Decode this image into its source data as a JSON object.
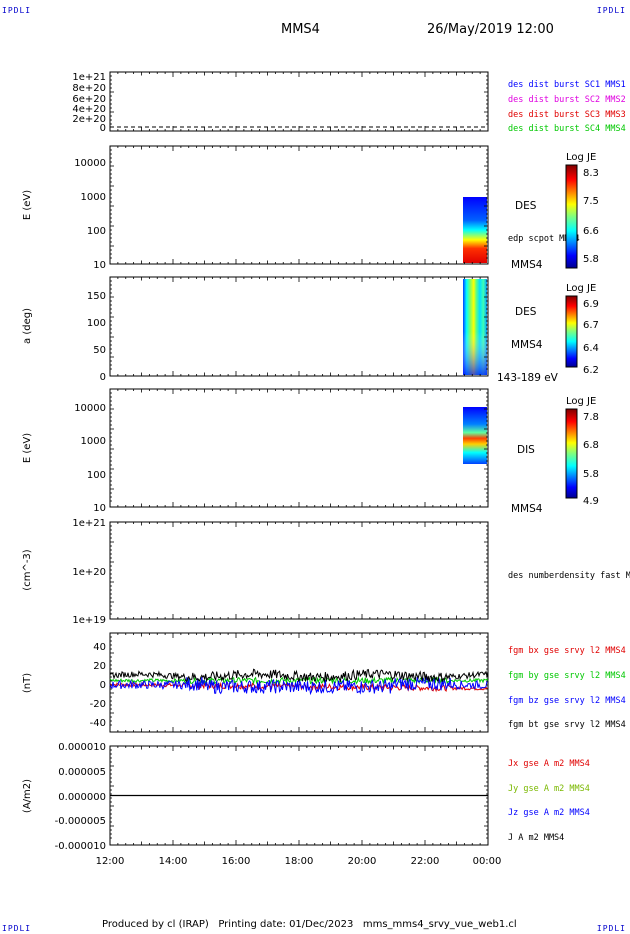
{
  "corner_labels": {
    "top_left": "IPDLI",
    "top_right": "IPDLI",
    "bottom_left": "IPDLI",
    "bottom_right": "IPDLI"
  },
  "header": {
    "spacecraft": "MMS4",
    "date": "26/May/2019 12:00"
  },
  "footer": {
    "text": "Produced by cl (IRAP)   Printing date: 01/Dec/2023   mms_mms4_srvy_vue_web1.cl"
  },
  "colors": {
    "red": "#e00000",
    "magenta": "#e000e0",
    "green": "#00c800",
    "blue": "#0000ff",
    "yellowgreen": "#7ab800",
    "black": "#000000"
  },
  "chart_data": [
    {
      "id": "panel1",
      "type": "line",
      "yticks": [
        "1e+21",
        "8e+20",
        "6e+20",
        "4e+20",
        "2e+20",
        "0"
      ],
      "ylim": [
        0,
        1.05e+21
      ],
      "series": [
        {
          "name": "des dist burst SC1 MMS1",
          "color": "#0000ff"
        },
        {
          "name": "des dist burst SC2 MMS2",
          "color": "#e000e0"
        },
        {
          "name": "des dist burst SC3 MMS3",
          "color": "#e00000"
        },
        {
          "name": "des dist burst SC4 MMS4",
          "color": "#00c800"
        }
      ],
      "reference_line": {
        "y": 0,
        "style": "dashed"
      }
    },
    {
      "id": "panel2",
      "type": "heatmap",
      "ylabel": "E (eV)",
      "yticks": [
        "10000",
        "1000",
        "100",
        "10"
      ],
      "yscale": "log",
      "ylim": [
        10,
        20000
      ],
      "side_label": "DES",
      "extra_label": "edp scpot MMS4",
      "bottom_label": "MMS4",
      "colorbar": {
        "title": "Log JE",
        "ticks": [
          "8.3",
          "7.5",
          "6.6",
          "5.8"
        ],
        "range": [
          5.8,
          8.3
        ]
      },
      "data_time_range": [
        "23:10",
        "23:55"
      ],
      "data_energy_range": [
        10,
        1000
      ]
    },
    {
      "id": "panel3",
      "type": "heatmap",
      "ylabel": "a (deg)",
      "yticks": [
        "150",
        "100",
        "50",
        "0"
      ],
      "ylim": [
        0,
        180
      ],
      "side_label": "DES",
      "extra_label": "MMS4",
      "bottom_label": "143-189 eV",
      "colorbar": {
        "title": "Log JE",
        "ticks": [
          "6.9",
          "6.7",
          "6.4",
          "6.2"
        ],
        "range": [
          6.2,
          6.9
        ]
      },
      "data_time_range": [
        "23:10",
        "23:55"
      ]
    },
    {
      "id": "panel4",
      "type": "heatmap",
      "ylabel": "E (eV)",
      "yticks": [
        "10000",
        "1000",
        "100",
        "10"
      ],
      "yscale": "log",
      "ylim": [
        10,
        20000
      ],
      "side_label": "DIS",
      "bottom_label": "MMS4",
      "colorbar": {
        "title": "Log JE",
        "ticks": [
          "7.8",
          "6.8",
          "5.8",
          "4.9"
        ],
        "range": [
          4.9,
          7.8
        ]
      },
      "data_time_range": [
        "23:10",
        "23:55"
      ],
      "data_energy_range": [
        200,
        10000
      ]
    },
    {
      "id": "panel5",
      "type": "line",
      "ylabel": "(cm^-3)",
      "yticks": [
        "1e+21",
        "1e+20",
        "1e+19"
      ],
      "yscale": "log",
      "series": [
        {
          "name": "des numberdensity fast M",
          "color": "#000000"
        }
      ]
    },
    {
      "id": "panel6",
      "type": "line",
      "ylabel": "(nT)",
      "yticks": [
        "40",
        "20",
        "0",
        "-20",
        "-40"
      ],
      "ylim": [
        -50,
        50
      ],
      "series": [
        {
          "name": "fgm bx gse srvy l2 MMS4",
          "color": "#e00000"
        },
        {
          "name": "fgm by gse srvy l2 MMS4",
          "color": "#00c800"
        },
        {
          "name": "fgm bz gse srvy l2 MMS4",
          "color": "#0000ff"
        },
        {
          "name": "fgm bt gse srvy l2 MMS4",
          "color": "#000000"
        }
      ]
    },
    {
      "id": "panel7",
      "type": "line",
      "ylabel": "(A/m2)",
      "yticks": [
        "0.000010",
        "0.000005",
        "0.000000",
        "-0.000005",
        "-0.000010"
      ],
      "ylim": [
        -1e-05,
        1e-05
      ],
      "series": [
        {
          "name": "Jx gse A m2 MMS4",
          "color": "#e00000"
        },
        {
          "name": "Jy gse A m2 MMS4",
          "color": "#7ab800"
        },
        {
          "name": "Jz gse A m2 MMS4",
          "color": "#0000ff"
        },
        {
          "name": "J A m2 MMS4",
          "color": "#000000"
        }
      ]
    }
  ],
  "x_axis": {
    "ticks": [
      "12:00",
      "14:00",
      "16:00",
      "18:00",
      "20:00",
      "22:00",
      "00:00"
    ],
    "range_hours": [
      12,
      24
    ]
  }
}
